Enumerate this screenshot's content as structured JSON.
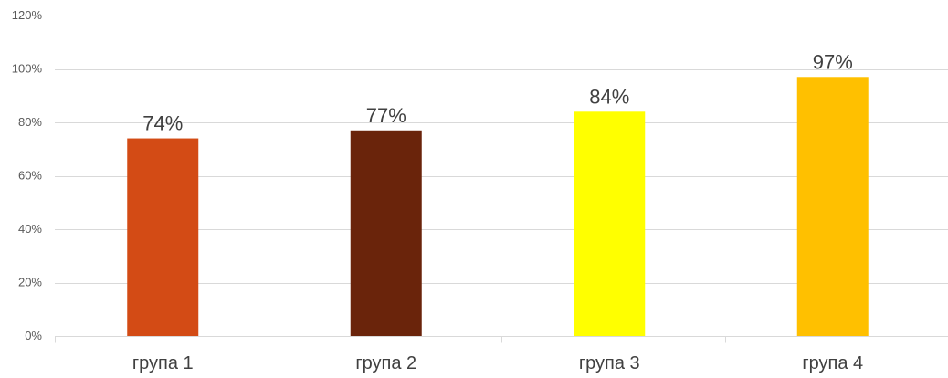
{
  "chart_data": {
    "type": "bar",
    "categories": [
      "група 1",
      "група 2",
      "група 3",
      "група 4"
    ],
    "values": [
      74,
      77,
      84,
      97
    ],
    "data_labels": [
      "74%",
      "77%",
      "84%",
      "97%"
    ],
    "colors": [
      "#d34b15",
      "#6a240b",
      "#ffff00",
      "#ffc000"
    ],
    "ylim": [
      0,
      120
    ],
    "yticks": [
      0,
      20,
      40,
      60,
      80,
      100,
      120
    ],
    "ytick_labels": [
      "0%",
      "20%",
      "40%",
      "60%",
      "80%",
      "100%",
      "120%"
    ],
    "grid": true,
    "legend": "none"
  }
}
